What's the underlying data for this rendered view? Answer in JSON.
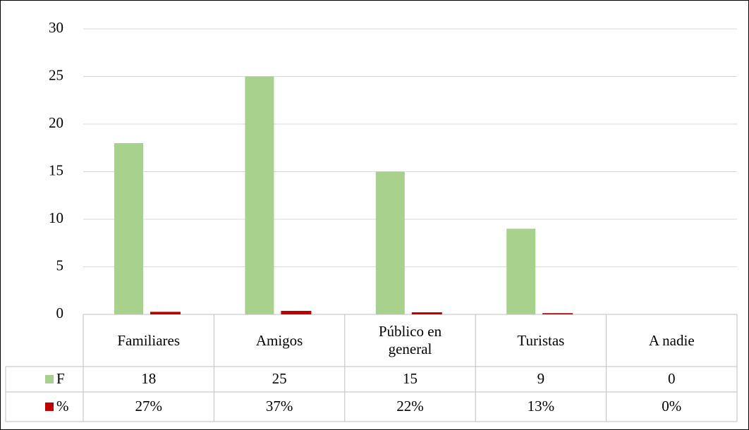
{
  "chart_data": {
    "type": "bar",
    "categories": [
      "Familiares",
      "Amigos",
      "Público en general",
      "Turistas",
      "A nadie"
    ],
    "series": [
      {
        "name": "F",
        "color": "#a9d18e",
        "values": [
          18,
          25,
          15,
          9,
          0
        ]
      },
      {
        "name": "%",
        "color": "#c00000",
        "values": [
          0.27,
          0.37,
          0.22,
          0.13,
          0
        ],
        "value_labels": [
          "27%",
          "37%",
          "22%",
          "13%",
          "0%"
        ]
      }
    ],
    "ylim": [
      0,
      30
    ],
    "yticks": [
      0,
      5,
      10,
      15,
      20,
      25,
      30
    ],
    "grid": true,
    "legend": "data-table"
  }
}
